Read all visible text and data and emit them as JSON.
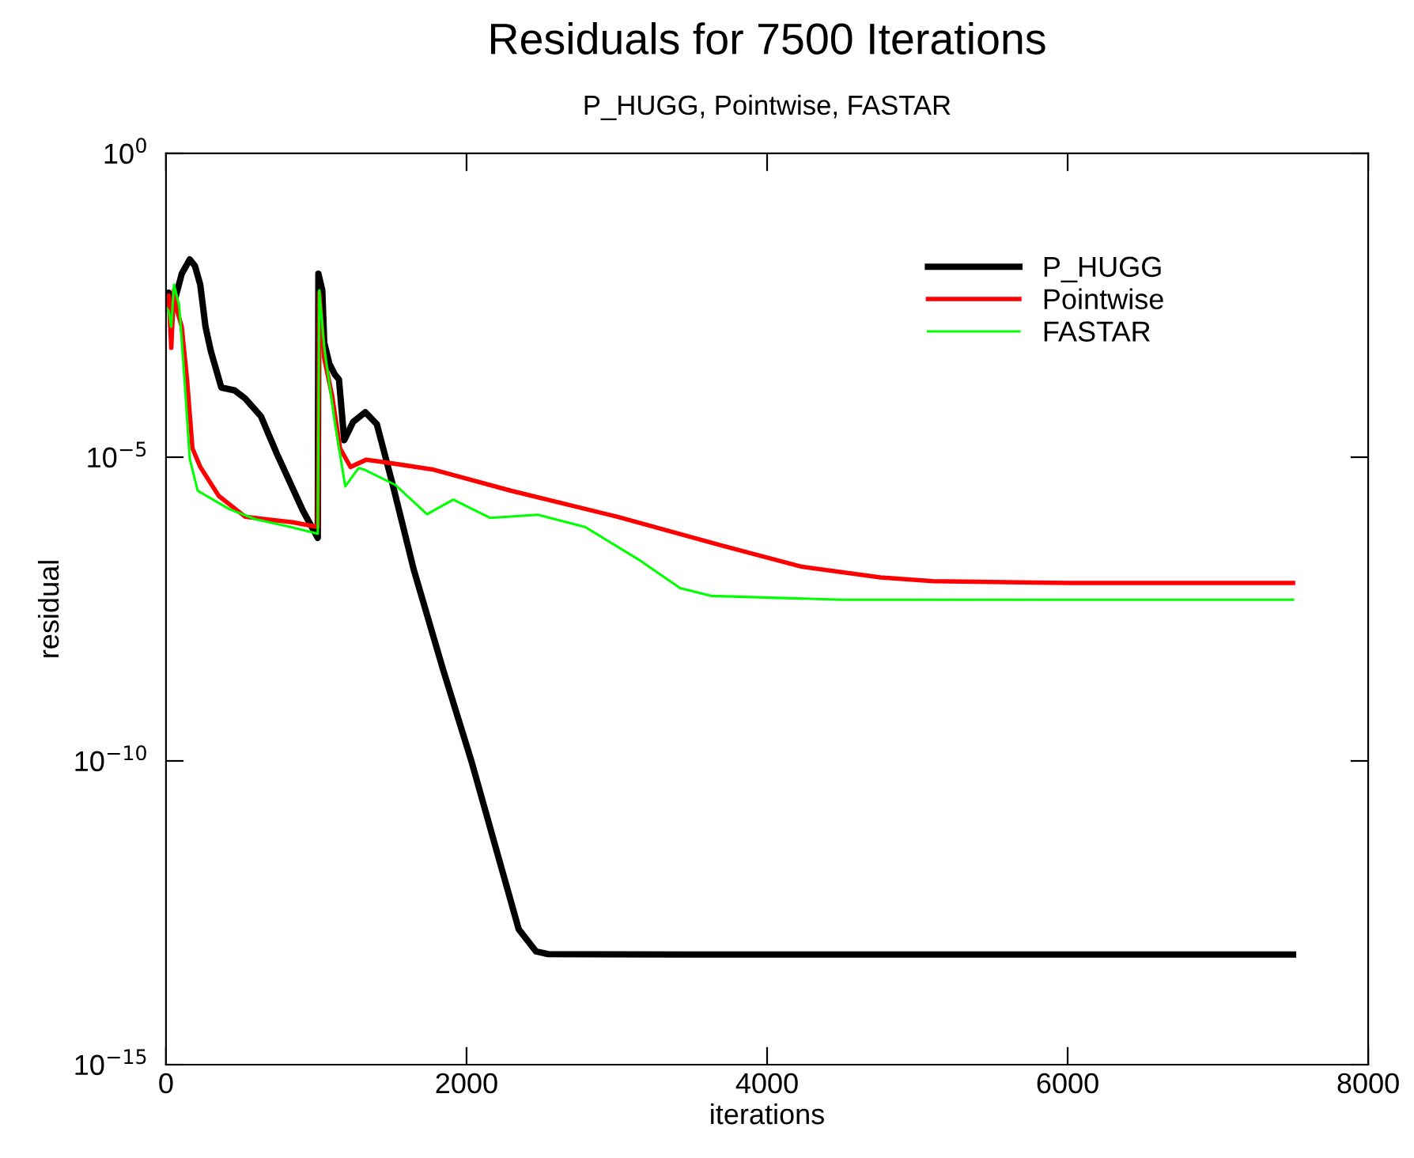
{
  "chart_data": {
    "type": "line",
    "title": "Residuals for 7500 Iterations",
    "subtitle": "P_HUGG, Pointwise, FASTAR",
    "xlabel": "iterations",
    "ylabel": "residual",
    "log": "y",
    "legend": "top right",
    "grid": false,
    "xlim": [
      0,
      8000
    ],
    "xticks": [
      0,
      2000,
      4000,
      6000,
      8000
    ],
    "ylim": [
      1e-15,
      1
    ],
    "yticks": [
      {
        "value": 1e-15,
        "label": "10$^{−15}$"
      },
      {
        "value": 1e-10,
        "label": "10$^{−10}$"
      },
      {
        "value": 1e-05,
        "label": "10$^{−5}$"
      },
      {
        "value": 1,
        "label": "10$^{0}$"
      }
    ],
    "series": [
      {
        "name": "P_HUGG",
        "color": "#000000",
        "x": [
          0,
          18,
          53,
          105,
          158,
          193,
          228,
          263,
          298,
          368,
          456,
          526,
          632,
          737,
          912,
          1010,
          1014,
          1040,
          1053,
          1088,
          1123,
          1151,
          1186,
          1245,
          1326,
          1403,
          1509,
          1649,
          1842,
          2032,
          2347,
          2463,
          2544,
          3500,
          4500,
          5500,
          6500,
          7500
        ],
        "values": [
          0.003,
          0.0051,
          0.0034,
          0.0105,
          0.018,
          0.014,
          0.0069,
          0.0014,
          0.00056,
          0.00014,
          0.000126,
          9.3e-05,
          4.7e-05,
          1.15e-05,
          1.3e-06,
          4.7e-07,
          0.0105,
          0.0056,
          0.00076,
          0.00034,
          0.00023,
          0.00019,
          1.9e-05,
          3.8e-05,
          5.5e-05,
          3.5e-05,
          3.5e-06,
          1.4e-07,
          3.3e-09,
          1e-10,
          1.7e-13,
          7.3e-14,
          6.6e-14,
          6.5e-14,
          6.5e-14,
          6.5e-14,
          6.5e-14,
          6.5e-14
        ]
      },
      {
        "name": "Pointwise",
        "color": "#ff0000",
        "x": [
          0,
          18,
          35,
          53,
          70,
          105,
          140,
          176,
          228,
          351,
          526,
          667,
          842,
          1010,
          1020,
          1053,
          1105,
          1158,
          1228,
          1333,
          1421,
          1772,
          2298,
          3000,
          3702,
          4228,
          4754,
          5105,
          6000,
          7500
        ],
        "values": [
          0.003,
          0.0046,
          0.00063,
          0.0056,
          0.0028,
          0.0014,
          0.00019,
          1.4e-05,
          6.9e-06,
          2.3e-06,
          1.05e-06,
          9.5e-07,
          8.5e-07,
          7.1e-07,
          0.0051,
          0.00042,
          0.000105,
          1.4e-05,
          6.9e-06,
          9.1e-06,
          8.5e-06,
          6.3e-06,
          2.8e-06,
          1.05e-06,
          3.5e-07,
          1.58e-07,
          1.05e-07,
          9.1e-08,
          8.5e-08,
          8.5e-08
        ]
      },
      {
        "name": "FASTAR",
        "color": "#00ff00",
        "x": [
          0,
          18,
          35,
          53,
          88,
          123,
          158,
          211,
          421,
          596,
          807,
          1010,
          1020,
          1053,
          1123,
          1193,
          1281,
          1316,
          1526,
          1737,
          1912,
          2158,
          2474,
          2789,
          3140,
          3421,
          3632,
          4500,
          6000,
          7500
        ],
        "values": [
          0.003,
          0.0025,
          0.0014,
          0.0069,
          0.0031,
          0.00019,
          9.4e-06,
          2.8e-06,
          1.4e-06,
          9.5e-07,
          7.3e-07,
          5.5e-07,
          0.0056,
          0.00063,
          3.8e-05,
          3.3e-06,
          6.6e-06,
          6.3e-06,
          3.5e-06,
          1.15e-06,
          2e-06,
          1e-06,
          1.13e-06,
          7.1e-07,
          2.1e-07,
          7e-08,
          5.2e-08,
          4.5e-08,
          4.5e-08,
          4.5e-08
        ]
      }
    ]
  }
}
